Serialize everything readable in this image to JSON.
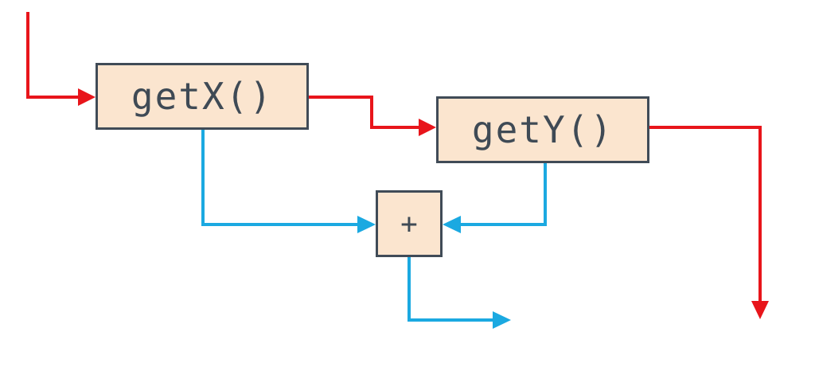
{
  "diagram": {
    "nodes": {
      "getx": {
        "label": "getX()"
      },
      "gety": {
        "label": "getY()"
      },
      "plus": {
        "label": "+"
      }
    },
    "edges": [
      {
        "from": "input",
        "to": "getx",
        "kind": "control"
      },
      {
        "from": "getx",
        "to": "gety",
        "kind": "control"
      },
      {
        "from": "gety",
        "to": "output",
        "kind": "control"
      },
      {
        "from": "getx",
        "to": "plus",
        "kind": "data"
      },
      {
        "from": "gety",
        "to": "plus",
        "kind": "data"
      },
      {
        "from": "plus",
        "to": "result",
        "kind": "data"
      }
    ],
    "colors": {
      "control_flow": "#e8151b",
      "data_flow": "#1ba9e1",
      "box_fill": "#fbe5cf",
      "box_border": "#404b57",
      "text": "#3f4a55"
    }
  }
}
